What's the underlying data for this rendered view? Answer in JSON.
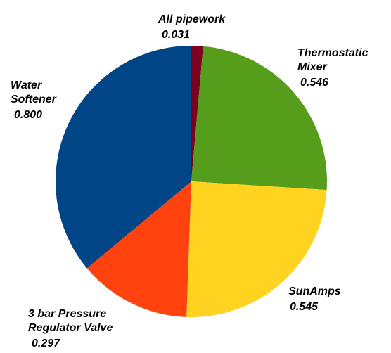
{
  "chart_data": {
    "type": "pie",
    "categories": [
      "All pipework",
      "Thermostatic\nMixer",
      "SunAmps",
      "3 bar Pressure\nRegulator Valve",
      "Water\nSoftener"
    ],
    "values": [
      0.031,
      0.546,
      0.545,
      0.297,
      0.8
    ],
    "value_labels": [
      "0.031",
      "0.546",
      "0.545",
      "0.297",
      "0.800"
    ],
    "colors": [
      "#7e0021",
      "#579d1c",
      "#ffd320",
      "#ff420e",
      "#004586"
    ]
  }
}
